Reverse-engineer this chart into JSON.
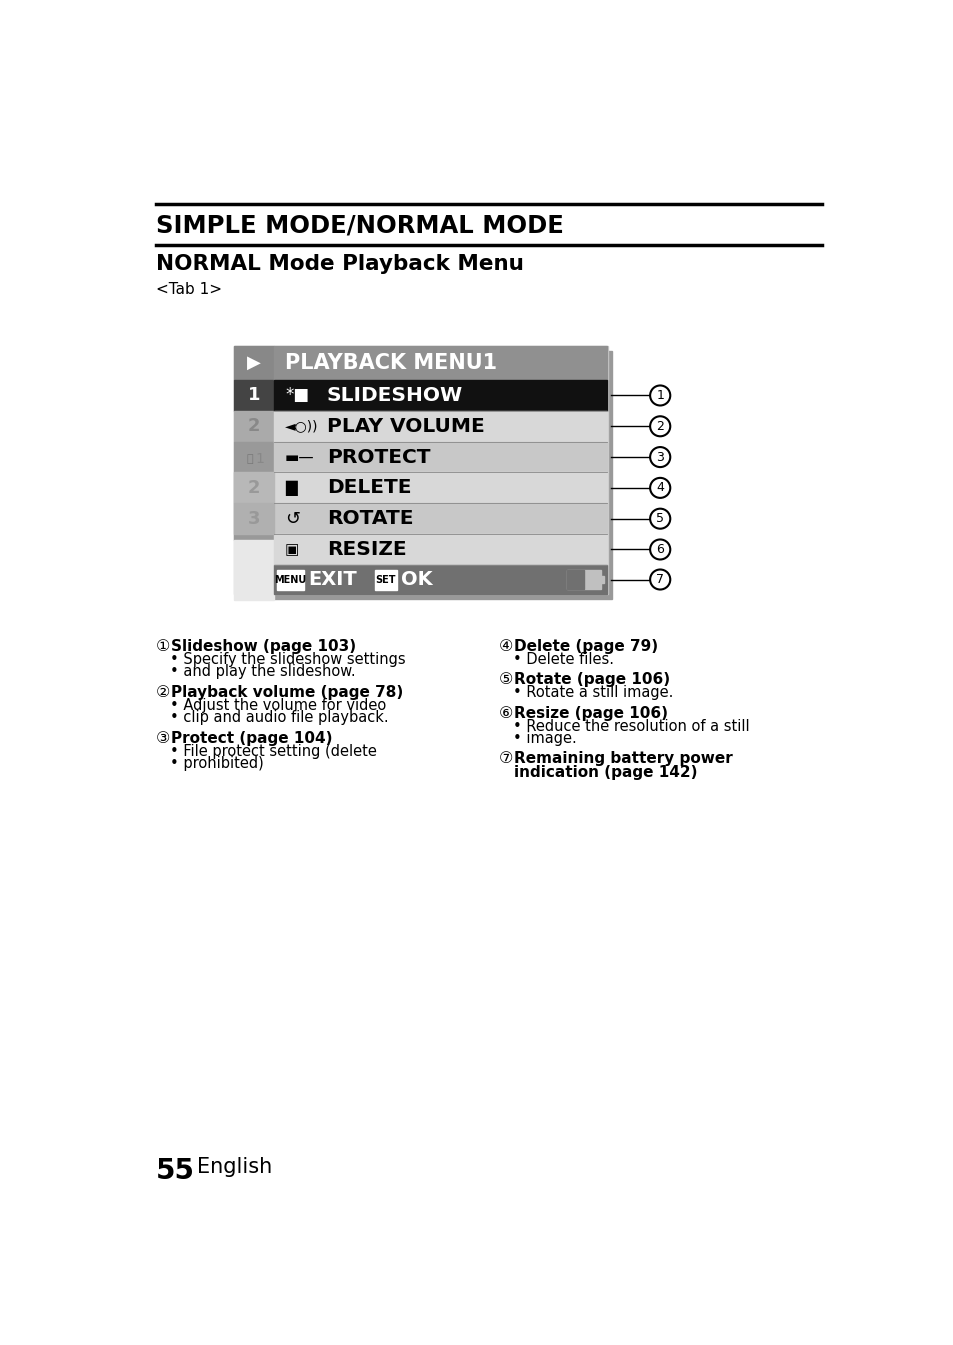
{
  "title1": "SIMPLE MODE/NORMAL MODE",
  "title2": "NORMAL Mode Playback Menu",
  "subtitle": "<Tab 1>",
  "page_number": "55",
  "page_label": "English",
  "menu_title": "PLAYBACK MENU1",
  "item_labels": [
    "SLIDESHOW",
    "PLAY VOLUME",
    "PROTECT",
    "DELETE",
    "ROTATE",
    "RESIZE"
  ],
  "item_bg_colors": [
    "#111111",
    "#d8d8d8",
    "#c8c8c8",
    "#d8d8d8",
    "#c8c8c8",
    "#d8d8d8"
  ],
  "item_fg_colors": [
    "#ffffff",
    "#000000",
    "#000000",
    "#000000",
    "#000000",
    "#000000"
  ],
  "header_bg": "#808080",
  "bottom_bg": "#707070",
  "sidebar_play_bg": "#888888",
  "sidebar_1_bg": "#555555",
  "sidebar_2_bg": "#aaaaaa",
  "sidebar_tools_bg": "#888888",
  "sidebar_sub2_bg": "#b0b0b0",
  "sidebar_sub3_bg": "#aaaaaa",
  "annotations_left": [
    {
      "num": 1,
      "title": "Slideshow (page 103)",
      "bullets": [
        "Specify the slideshow settings",
        "and play the slideshow."
      ]
    },
    {
      "num": 2,
      "title": "Playback volume (page 78)",
      "bullets": [
        "Adjust the volume for video",
        "clip and audio file playback."
      ]
    },
    {
      "num": 3,
      "title": "Protect (page 104)",
      "bullets": [
        "File protect setting (delete",
        "prohibited)"
      ]
    }
  ],
  "annotations_right": [
    {
      "num": 4,
      "title": "Delete (page 79)",
      "bullets": [
        "Delete files."
      ]
    },
    {
      "num": 5,
      "title": "Rotate (page 106)",
      "bullets": [
        "Rotate a still image."
      ]
    },
    {
      "num": 6,
      "title": "Resize (page 106)",
      "bullets": [
        "Reduce the resolution of a still",
        "image."
      ]
    },
    {
      "num": 7,
      "title": "Remaining battery power\nindication (page 142)",
      "bullets": []
    }
  ],
  "bg_color": "#ffffff"
}
